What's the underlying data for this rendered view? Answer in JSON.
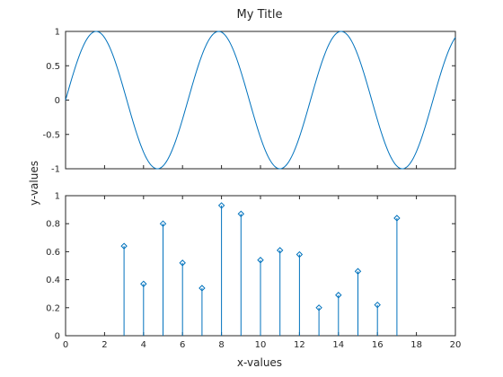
{
  "figure": {
    "title": "My Title",
    "xlabel": "x-values",
    "ylabel": "y-values"
  },
  "chart_data": [
    {
      "type": "line",
      "function": "sin(x)",
      "title": "My Title",
      "xlim": [
        0,
        20
      ],
      "ylim": [
        -1,
        1
      ],
      "xticks": [],
      "yticks": [
        -1,
        -0.5,
        0,
        0.5,
        1
      ],
      "ytick_labels": [
        "-1",
        "-0.5",
        "0",
        "0.5",
        "1"
      ],
      "x": [
        0,
        0.5,
        1,
        1.5,
        2,
        2.5,
        3,
        3.5,
        4,
        4.5,
        5,
        5.5,
        6,
        6.5,
        7,
        7.5,
        8,
        8.5,
        9,
        9.5,
        10,
        10.5,
        11,
        11.5,
        12,
        12.5,
        13,
        13.5,
        14,
        14.5,
        15,
        15.5,
        16,
        16.5,
        17,
        17.5,
        18,
        18.5,
        19,
        19.5,
        20
      ],
      "y": [
        0,
        0.479,
        0.841,
        0.997,
        0.909,
        0.598,
        0.141,
        -0.351,
        -0.757,
        -0.978,
        -0.959,
        -0.706,
        -0.279,
        0.215,
        0.657,
        0.938,
        0.989,
        0.798,
        0.412,
        -0.075,
        -0.544,
        -0.88,
        -1.0,
        -0.875,
        -0.537,
        -0.066,
        0.42,
        0.803,
        0.991,
        0.935,
        0.65,
        0.206,
        -0.288,
        -0.712,
        -0.961,
        -0.976,
        -0.751,
        -0.342,
        0.15,
        0.604,
        0.913
      ],
      "color": "#0072bd",
      "grid": false
    },
    {
      "type": "stem",
      "xlim": [
        0,
        20
      ],
      "ylim": [
        0,
        1
      ],
      "xticks": [
        0,
        2,
        4,
        6,
        8,
        10,
        12,
        14,
        16,
        18,
        20
      ],
      "xtick_labels": [
        "0",
        "2",
        "4",
        "6",
        "8",
        "10",
        "12",
        "14",
        "16",
        "18",
        "20"
      ],
      "yticks": [
        0,
        0.2,
        0.4,
        0.6,
        0.8,
        1
      ],
      "ytick_labels": [
        "0",
        "0.2",
        "0.4",
        "0.6",
        "0.8",
        "1"
      ],
      "x": [
        3,
        4,
        5,
        6,
        7,
        8,
        9,
        10,
        11,
        12,
        13,
        14,
        15,
        16,
        17
      ],
      "y": [
        0.64,
        0.37,
        0.8,
        0.52,
        0.34,
        0.93,
        0.87,
        0.54,
        0.61,
        0.58,
        0.2,
        0.29,
        0.46,
        0.22,
        0.84
      ],
      "marker": "diamond",
      "color": "#0072bd",
      "grid": false
    }
  ]
}
